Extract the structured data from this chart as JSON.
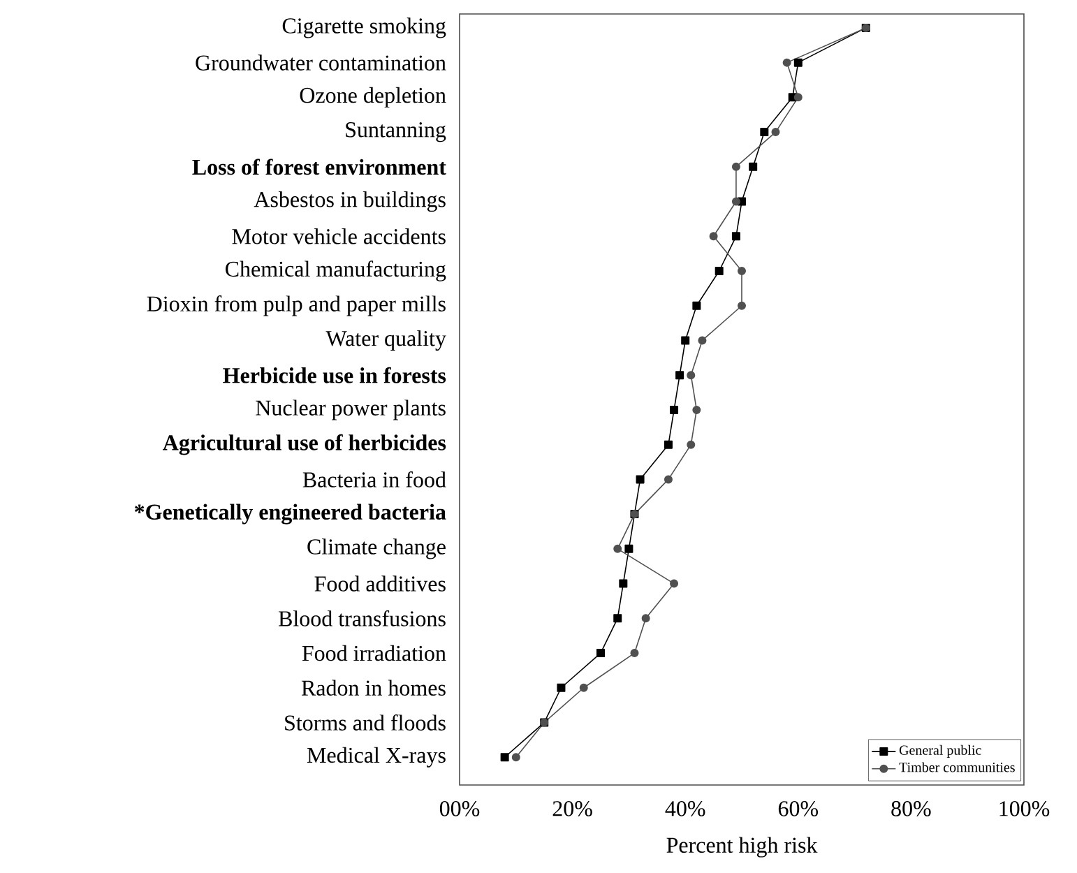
{
  "chart_data": {
    "type": "line",
    "orientation": "horizontal",
    "xlabel": "Percent high risk",
    "legend": "bottom right",
    "line_style": "solid",
    "categories": [
      "Cigarette smoking",
      "Groundwater contamination",
      "Ozone depletion",
      "Suntanning",
      "**Loss of forest environment**",
      "Asbestos in buildings",
      "Motor vehicle accidents",
      "Chemical manufacturing",
      "Dioxin from pulp and paper mills",
      "Water quality",
      "**Herbicide use in forests**",
      "Nuclear power plants",
      "**Agricultural use of herbicides**",
      "Bacteria in food",
      "***Genetically engineered bacteria**",
      "Climate change",
      "Food additives",
      "Blood transfusions",
      "Food irradiation",
      "Radon in homes",
      "Storms and floods",
      "Medical X-rays"
    ],
    "series": [
      {
        "name": "General public",
        "color": "#000000",
        "marker": "square",
        "values": [
          72,
          60,
          59,
          54,
          52,
          50,
          49,
          46,
          42,
          40,
          39,
          38,
          37,
          32,
          31,
          30,
          29,
          28,
          25,
          18,
          15,
          8
        ]
      },
      {
        "name": "Timber communities",
        "color": "#505050",
        "marker": "circle",
        "values": [
          72,
          58,
          60,
          56,
          49,
          49,
          45,
          50,
          50,
          43,
          41,
          42,
          41,
          37,
          31,
          28,
          38,
          33,
          31,
          22,
          15,
          10
        ]
      }
    ],
    "xlim": [
      0,
      100
    ],
    "xticks": [
      {
        "value": 0,
        "label": "00%"
      },
      {
        "value": 20,
        "label": "20%"
      },
      {
        "value": 40,
        "label": "40%"
      },
      {
        "value": 60,
        "label": "60%"
      },
      {
        "value": 80,
        "label": "80%"
      },
      {
        "value": 100,
        "label": "100%"
      }
    ]
  }
}
